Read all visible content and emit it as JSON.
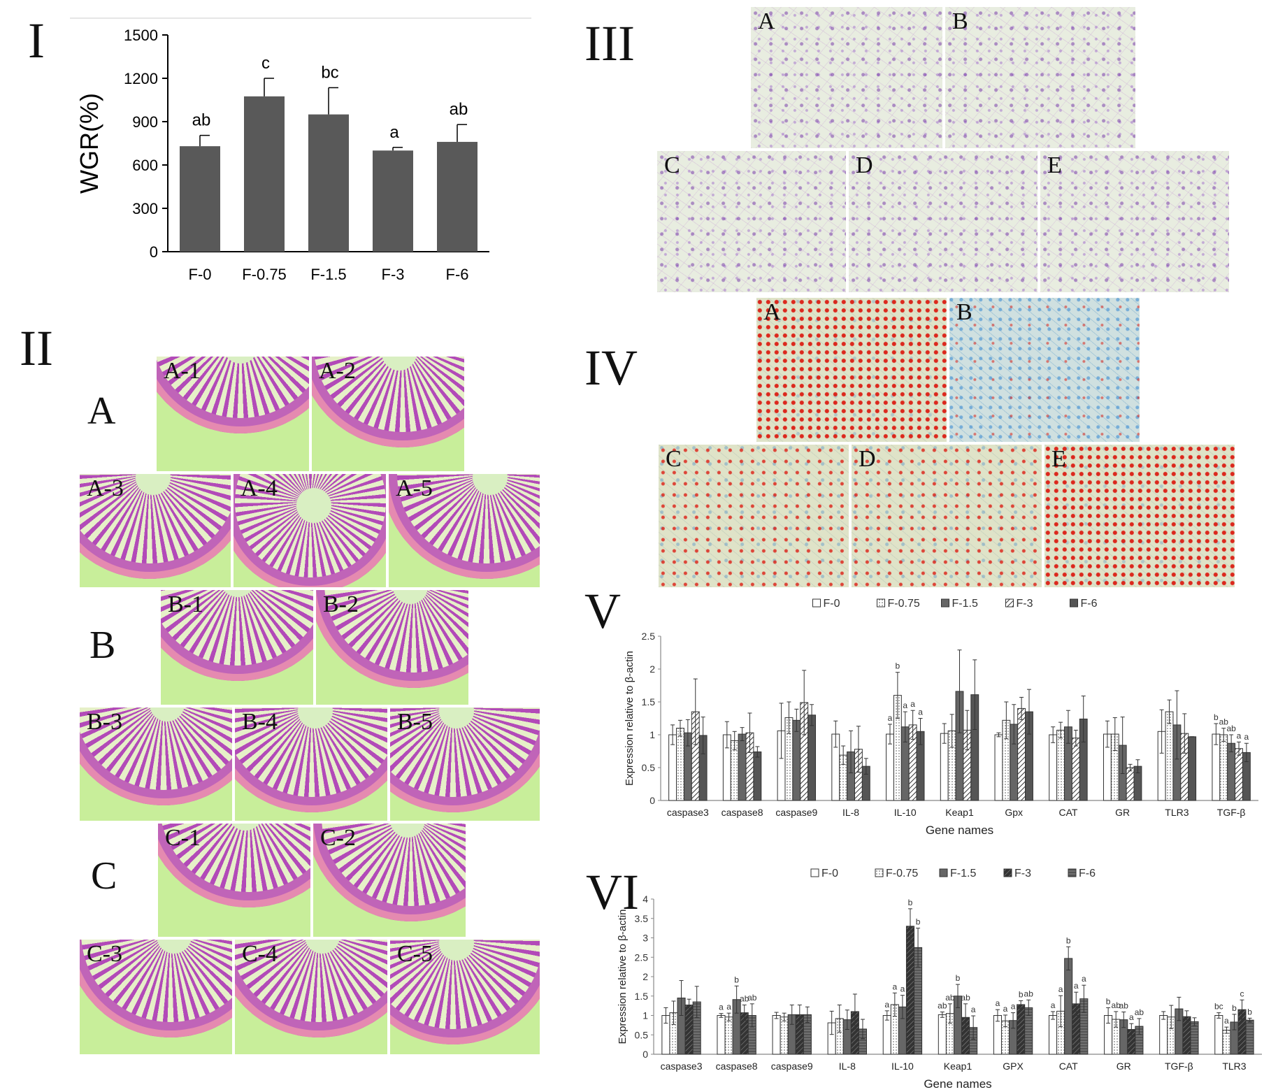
{
  "panel_labels": {
    "p1": "I",
    "p2": "II",
    "p3": "III",
    "p4": "IV",
    "p5": "V",
    "p6": "VI"
  },
  "panel2": {
    "groups": [
      "A",
      "B",
      "C"
    ],
    "tiles": [
      "A-1",
      "A-2",
      "A-3",
      "A-4",
      "A-5",
      "B-1",
      "B-2",
      "B-3",
      "B-4",
      "B-5",
      "C-1",
      "C-2",
      "C-3",
      "C-4",
      "C-5"
    ]
  },
  "panel3": {
    "tiles": [
      "A",
      "B",
      "C",
      "D",
      "E"
    ]
  },
  "panel4": {
    "tiles": [
      "A",
      "B",
      "C",
      "D",
      "E"
    ]
  },
  "colors": {
    "bar_dark": "#595959",
    "he_bg": "#e8ede0",
    "intestine_bg": "#c8ee9a"
  },
  "chart_data": [
    {
      "type": "bar",
      "categories": [
        "F-0",
        "F-0.75",
        "F-1.5",
        "F-3",
        "F-6"
      ],
      "values": [
        730,
        1075,
        950,
        700,
        760
      ],
      "errors": [
        75,
        125,
        185,
        22,
        120
      ],
      "letters": [
        "ab",
        "c",
        "bc",
        "a",
        "ab"
      ],
      "ylabel": "WGR(%)",
      "ylim": [
        0,
        1500
      ],
      "yticks": [
        "0",
        "300",
        "600",
        "900",
        "1200",
        "1500"
      ]
    },
    {
      "type": "bar",
      "categories": [
        "caspase3",
        "caspase8",
        "caspase9",
        "IL-8",
        "IL-10",
        "Keap1",
        "Gpx",
        "CAT",
        "GR",
        "TLR3",
        "TGF-β"
      ],
      "series": [
        {
          "name": "F-0",
          "values": [
            1.0,
            1.0,
            1.06,
            1.01,
            1.01,
            1.02,
            1.0,
            1.0,
            1.01,
            1.05,
            1.01
          ],
          "errors": [
            0.15,
            0.2,
            0.42,
            0.2,
            0.15,
            0.15,
            0.03,
            0.12,
            0.2,
            0.33,
            0.16
          ]
        },
        {
          "name": "F-0.75",
          "values": [
            1.1,
            0.91,
            1.26,
            0.69,
            1.6,
            1.06,
            1.22,
            1.07,
            1.01,
            1.35,
            1.0
          ]
        },
        {
          "name": "F-1.5",
          "values": [
            1.03,
            1.01,
            1.22,
            0.74,
            1.12,
            1.66,
            1.16,
            1.12,
            0.84,
            1.15,
            0.87
          ]
        },
        {
          "name": "F-3",
          "values": [
            1.35,
            1.03,
            1.49,
            0.78,
            1.15,
            1.07,
            1.4,
            0.95,
            0.5,
            1.02,
            0.79
          ]
        },
        {
          "name": "F-6",
          "values": [
            0.99,
            0.74,
            1.3,
            0.52,
            1.05,
            1.61,
            1.35,
            1.24,
            0.52,
            0.97,
            0.73
          ]
        }
      ],
      "errors_other": [
        [
          0.12,
          0.14,
          0.24,
          0.14,
          0.35,
          0.25,
          0.28,
          0.12,
          0.25,
          0.18,
          0.1
        ],
        [
          0.2,
          0.1,
          0.17,
          0.32,
          0.23,
          0.63,
          0.3,
          0.25,
          0.43,
          0.52,
          0.13
        ],
        [
          0.5,
          0.3,
          0.49,
          0.35,
          0.22,
          0.3,
          0.17,
          0.12,
          0.05,
          0.3,
          0.1
        ],
        [
          0.28,
          0.08,
          0.16,
          0.12,
          0.2,
          0.53,
          0.34,
          0.35,
          0.1,
          0.0,
          0.14
        ]
      ],
      "letters": {
        "IL-10": [
          "a",
          "b",
          "a",
          "a",
          "a"
        ],
        "TGF-β": [
          "b",
          "ab",
          "ab",
          "a",
          "a"
        ]
      },
      "legend": "top",
      "xlabel": "Gene names",
      "ylabel": "Expression relative to β-actin",
      "ylim": [
        0,
        2.5
      ],
      "yticks": [
        "0",
        "0.5",
        "1",
        "1.5",
        "2",
        "2.5"
      ]
    },
    {
      "type": "bar",
      "categories": [
        "caspase3",
        "caspase8",
        "caspase9",
        "IL-8",
        "IL-10",
        "Keap1",
        "GPX",
        "CAT",
        "GR",
        "TGF-β",
        "TLR3"
      ],
      "series": [
        {
          "name": "F-0",
          "values": [
            1.0,
            1.0,
            1.0,
            0.81,
            1.0,
            1.02,
            1.0,
            1.0,
            1.0,
            1.0,
            1.0
          ]
        },
        {
          "name": "F-0.75",
          "values": [
            1.07,
            0.96,
            0.96,
            0.92,
            1.28,
            1.05,
            0.86,
            1.11,
            0.9,
            0.96,
            0.62
          ]
        },
        {
          "name": "F-1.5",
          "values": [
            1.45,
            1.41,
            1.02,
            0.89,
            1.22,
            1.5,
            0.87,
            2.47,
            0.89,
            1.17,
            0.83
          ]
        },
        {
          "name": "F-3",
          "values": [
            1.27,
            1.07,
            1.02,
            1.1,
            3.3,
            0.95,
            1.28,
            1.3,
            0.64,
            0.97,
            1.15
          ]
        },
        {
          "name": "F-6",
          "values": [
            1.35,
            1.0,
            1.02,
            0.65,
            2.75,
            0.69,
            1.2,
            1.43,
            0.72,
            0.84,
            0.88
          ]
        }
      ],
      "errors": [
        [
          0.2,
          0.05,
          0.08,
          0.3,
          0.12,
          0.07,
          0.15,
          0.1,
          0.2,
          0.1,
          0.07
        ],
        [
          0.3,
          0.1,
          0.1,
          0.35,
          0.3,
          0.25,
          0.15,
          0.4,
          0.2,
          0.3,
          0.08
        ],
        [
          0.45,
          0.35,
          0.25,
          0.25,
          0.3,
          0.3,
          0.2,
          0.3,
          0.2,
          0.3,
          0.2
        ],
        [
          0.15,
          0.2,
          0.25,
          0.45,
          0.45,
          0.35,
          0.1,
          0.3,
          0.15,
          0.15,
          0.25
        ],
        [
          0.4,
          0.3,
          0.2,
          0.25,
          0.5,
          0.3,
          0.2,
          0.35,
          0.2,
          0.1,
          0.05
        ]
      ],
      "letters": {
        "caspase8": [
          "a",
          "a",
          "b",
          "ab",
          "ab"
        ],
        "IL-10": [
          "a",
          "a",
          "a",
          "b",
          "b"
        ],
        "Keap1": [
          "ab",
          "ab",
          "b",
          "ab",
          "a"
        ],
        "GPX": [
          "a",
          "a",
          "a",
          "b",
          "ab"
        ],
        "CAT": [
          "a",
          "a",
          "b",
          "a",
          "a"
        ],
        "GR": [
          "b",
          "ab",
          "ab",
          "a",
          "ab"
        ],
        "TLR3": [
          "bc",
          "a",
          "b",
          "c",
          "b"
        ]
      },
      "legend": "top",
      "xlabel": "Gene names",
      "ylabel": "Expression relative to β-actin",
      "ylim": [
        0,
        4
      ],
      "yticks": [
        "0",
        "0.5",
        "1",
        "1.5",
        "2",
        "2.5",
        "3",
        "3.5",
        "4"
      ]
    }
  ]
}
